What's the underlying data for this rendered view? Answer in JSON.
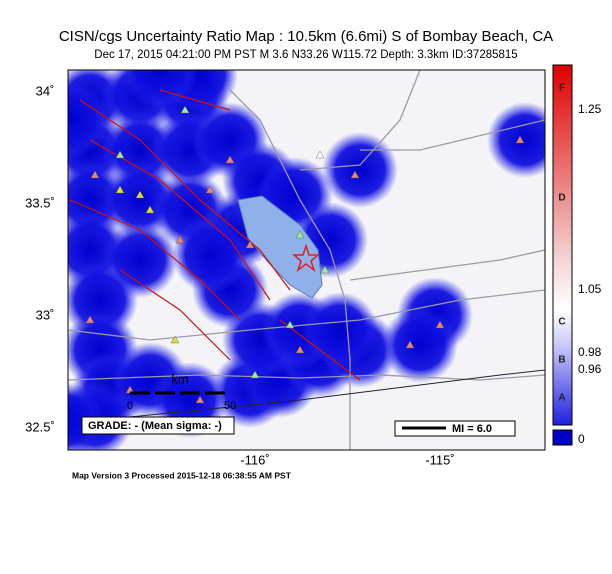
{
  "header": {
    "title": "CISN/cgs Uncertainty Ratio Map : 10.5km (6.6mi) S of Bombay Beach, CA",
    "subtitle": "Dec 17, 2015 04:21:00 PM PST   M 3.6   N33.26 W115.72   Depth: 3.3km   ID:37285815"
  },
  "map": {
    "lat_labels": [
      "34˚",
      "33.5˚",
      "33˚",
      "32.5˚"
    ],
    "lon_labels": [
      "-116˚",
      "-115˚"
    ],
    "scale": {
      "unit": "km",
      "start": "0",
      "end": "50"
    },
    "grade": "GRADE: - (Mean sigma: -)",
    "mi_legend": "MI = 6.0"
  },
  "colorbar": {
    "labels": [
      "1.25",
      "1.05",
      "0.98",
      "0.96",
      "0"
    ],
    "grades": [
      "F",
      "D",
      "C",
      "B",
      "A"
    ]
  },
  "footer": "Map Version 3 Processed 2015-12-18 06:38:55 AM PST"
}
